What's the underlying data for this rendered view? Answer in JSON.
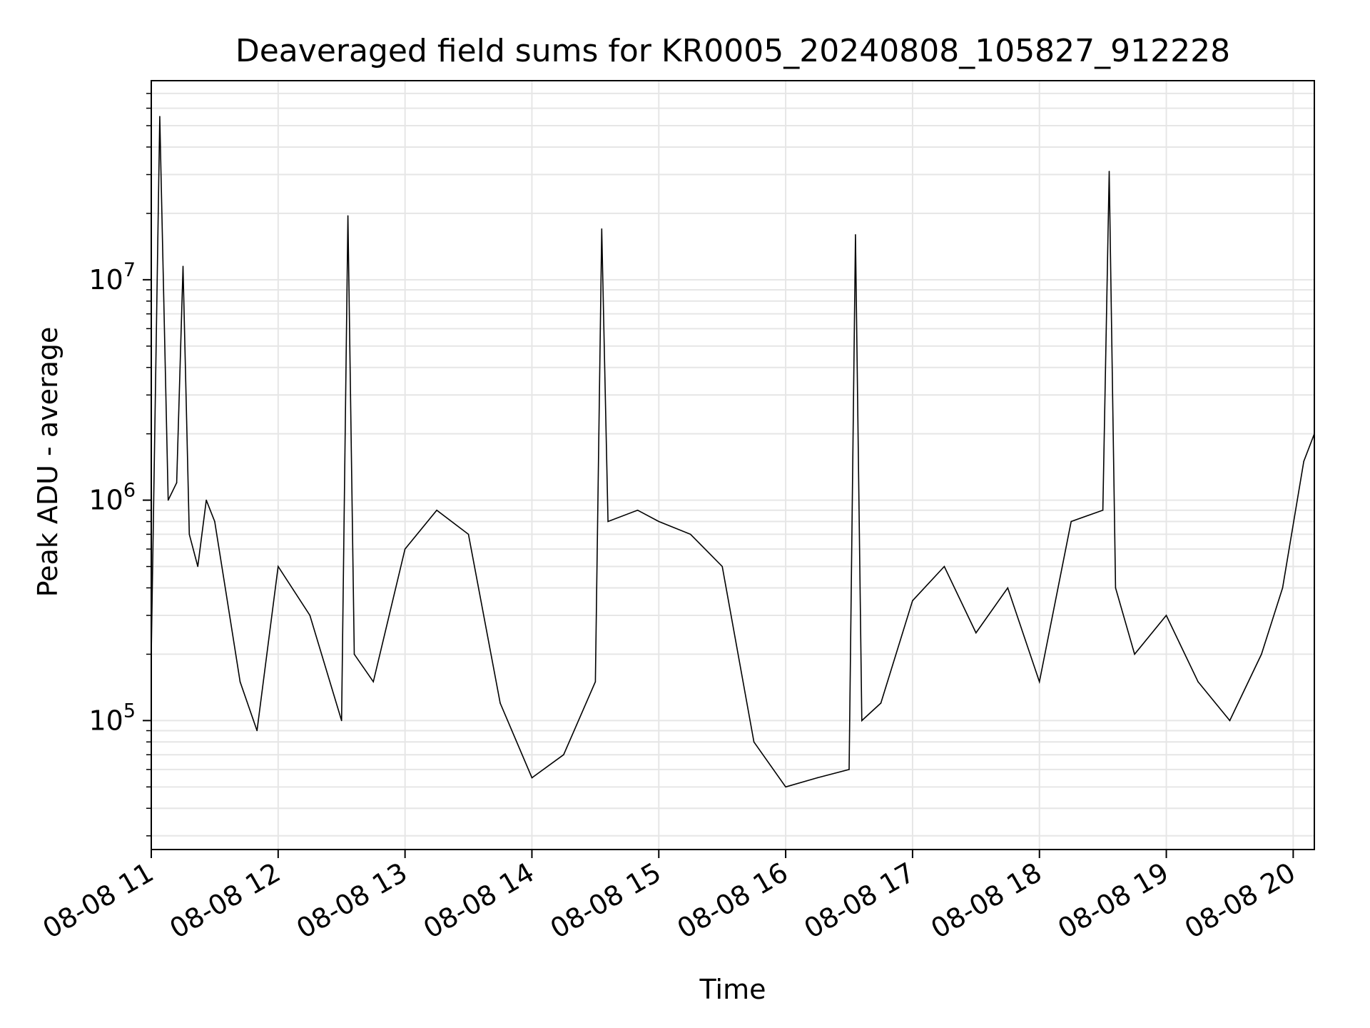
{
  "chart_data": {
    "type": "line",
    "title": "Deaveraged field sums for KR0005_20240808_105827_912228",
    "xlabel": "Time",
    "ylabel": "Peak ADU - average",
    "x_scale": "time",
    "y_scale": "log",
    "xlim": [
      "08-08 11:00",
      "08-08 20:10"
    ],
    "ylim": [
      26000,
      80000000
    ],
    "x_ticks": [
      "08-08 11",
      "08-08 12",
      "08-08 13",
      "08-08 14",
      "08-08 15",
      "08-08 16",
      "08-08 17",
      "08-08 18",
      "08-08 19",
      "08-08 20"
    ],
    "y_ticks": [
      {
        "base": "10",
        "exp": "5",
        "value": 100000
      },
      {
        "base": "10",
        "exp": "6",
        "value": 1000000
      },
      {
        "base": "10",
        "exp": "7",
        "value": 10000000
      }
    ],
    "grid": true,
    "line_color": "#000000",
    "series": [
      {
        "x": [
          "08-08 11:00",
          "08-08 11:04",
          "08-08 11:08",
          "08-08 11:12",
          "08-08 11:15",
          "08-08 11:18",
          "08-08 11:22",
          "08-08 11:26",
          "08-08 11:30",
          "08-08 11:35",
          "08-08 11:42",
          "08-08 11:50",
          "08-08 12:00",
          "08-08 12:15",
          "08-08 12:30",
          "08-08 12:33",
          "08-08 12:36",
          "08-08 12:45",
          "08-08 13:00",
          "08-08 13:15",
          "08-08 13:30",
          "08-08 13:45",
          "08-08 14:00",
          "08-08 14:15",
          "08-08 14:30",
          "08-08 14:33",
          "08-08 14:36",
          "08-08 14:50",
          "08-08 15:00",
          "08-08 15:15",
          "08-08 15:30",
          "08-08 15:45",
          "08-08 16:00",
          "08-08 16:15",
          "08-08 16:30",
          "08-08 16:33",
          "08-08 16:36",
          "08-08 16:45",
          "08-08 17:00",
          "08-08 17:15",
          "08-08 17:30",
          "08-08 17:45",
          "08-08 18:00",
          "08-08 18:15",
          "08-08 18:30",
          "08-08 18:33",
          "08-08 18:36",
          "08-08 18:45",
          "08-08 19:00",
          "08-08 19:15",
          "08-08 19:30",
          "08-08 19:45",
          "08-08 19:55",
          "08-08 20:05",
          "08-08 20:10"
        ],
        "values": [
          200000,
          55000000,
          1000000,
          1200000,
          11500000,
          700000,
          500000,
          1000000,
          800000,
          400000,
          150000,
          90000,
          500000,
          300000,
          100000,
          19500000,
          200000,
          150000,
          600000,
          900000,
          700000,
          120000,
          55000,
          70000,
          150000,
          17000000,
          800000,
          900000,
          800000,
          700000,
          500000,
          80000,
          50000,
          55000,
          60000,
          16000000,
          100000,
          120000,
          350000,
          500000,
          250000,
          400000,
          150000,
          800000,
          900000,
          31000000,
          400000,
          200000,
          300000,
          150000,
          100000,
          200000,
          400000,
          1500000,
          2000000
        ]
      }
    ]
  }
}
